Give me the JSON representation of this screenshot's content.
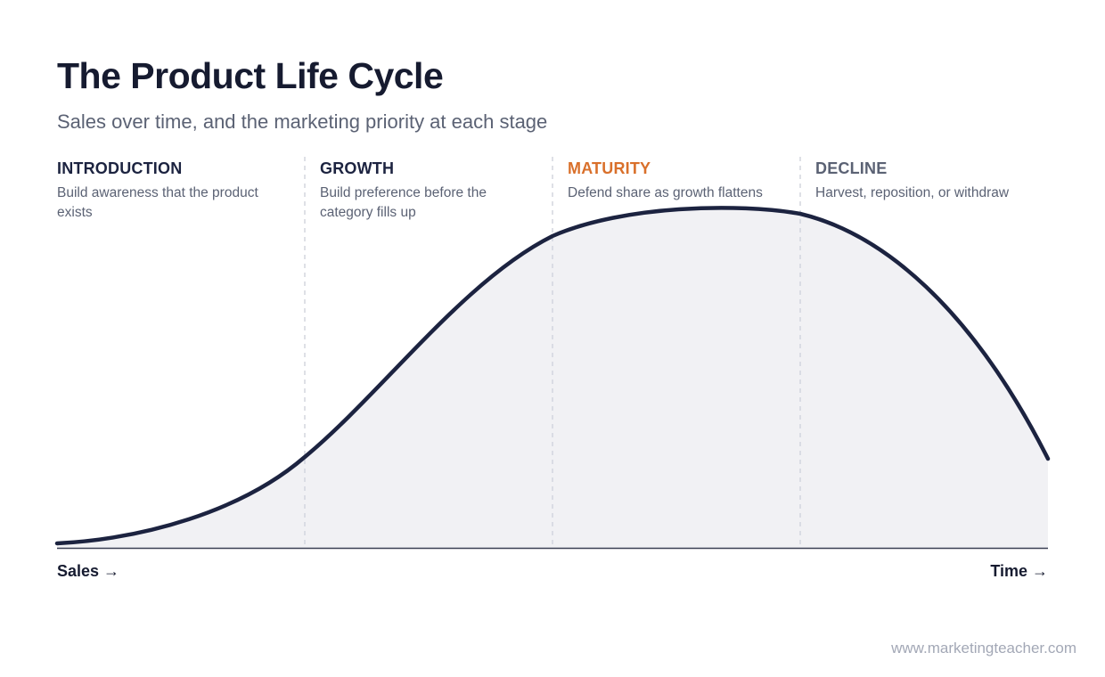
{
  "title": "The Product Life Cycle",
  "subtitle": "Sales over time, and the marketing priority at each stage",
  "stages": [
    {
      "name": "INTRODUCTION",
      "description": "Build awareness that the product exists",
      "color": "#1c2340"
    },
    {
      "name": "GROWTH",
      "description": "Build preference before the category fills up",
      "color": "#1c2340"
    },
    {
      "name": "MATURITY",
      "description": "Defend share as growth flattens",
      "color": "#d9702b"
    },
    {
      "name": "DECLINE",
      "description": "Harvest, reposition, or withdraw",
      "color": "#5b6274"
    }
  ],
  "axes": {
    "y_label": "Sales →",
    "x_label": "Time →"
  },
  "footer": "www.marketingteacher.com",
  "colors": {
    "curve": "#1c2340",
    "fill": "#f1f1f4",
    "divider": "#d3d6de",
    "baseline": "#3a3f52"
  }
}
